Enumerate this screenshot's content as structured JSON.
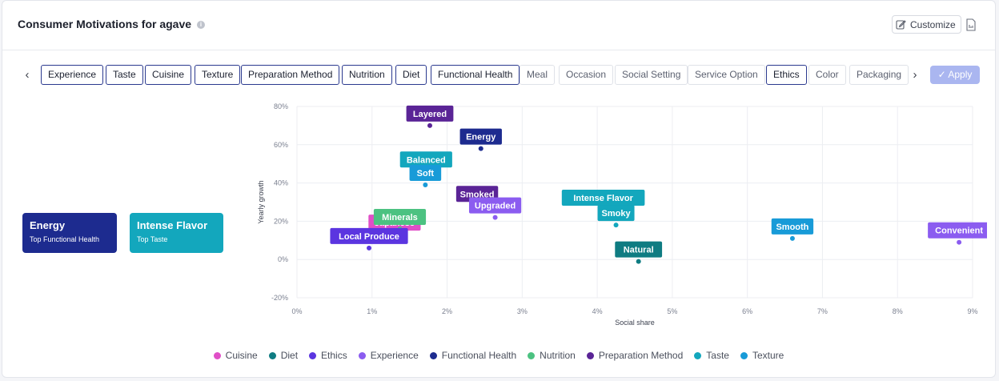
{
  "title": "Consumer Motivations for agave",
  "toolbar": {
    "customize_label": "Customize",
    "apply_label": "✓ Apply"
  },
  "filters": [
    {
      "label": "Experience",
      "selected": true
    },
    {
      "label": "Taste",
      "selected": true
    },
    {
      "label": "Cuisine",
      "selected": true
    },
    {
      "label": "Texture",
      "selected": true
    },
    {
      "label": "Preparation Method",
      "selected": true
    },
    {
      "label": "Nutrition",
      "selected": true
    },
    {
      "label": "Diet",
      "selected": true
    },
    {
      "label": "Functional Health",
      "selected": true
    },
    {
      "label": "Meal",
      "selected": false
    },
    {
      "label": "Occasion",
      "selected": false
    },
    {
      "label": "Social Setting",
      "selected": false
    },
    {
      "label": "Service Option",
      "selected": false
    },
    {
      "label": "Ethics",
      "selected": true
    },
    {
      "label": "Color",
      "selected": false
    },
    {
      "label": "Packaging",
      "selected": false
    }
  ],
  "summary_cards": [
    {
      "name": "Energy",
      "subtitle": "Top Functional Health",
      "color": "#1d2b8f"
    },
    {
      "name": "Intense Flavor",
      "subtitle": "Top Taste",
      "color": "#13a7bd"
    }
  ],
  "chart_data": {
    "type": "scatter",
    "xlabel": "Social share",
    "ylabel": "Yearly growth",
    "xlim": [
      0,
      9
    ],
    "ylim": [
      -20,
      80
    ],
    "xticks": [
      "0%",
      "1%",
      "2%",
      "3%",
      "4%",
      "5%",
      "6%",
      "7%",
      "8%",
      "9%"
    ],
    "yticks": [
      "-20%",
      "0%",
      "20%",
      "40%",
      "60%",
      "80%"
    ],
    "categories": [
      {
        "name": "Cuisine",
        "color": "#e04fc7"
      },
      {
        "name": "Diet",
        "color": "#0f7c82"
      },
      {
        "name": "Ethics",
        "color": "#5b35e0"
      },
      {
        "name": "Experience",
        "color": "#8b5cf0"
      },
      {
        "name": "Functional Health",
        "color": "#1d2b8f"
      },
      {
        "name": "Nutrition",
        "color": "#4cc281"
      },
      {
        "name": "Preparation Method",
        "color": "#5a2496"
      },
      {
        "name": "Taste",
        "color": "#13a7bd"
      },
      {
        "name": "Texture",
        "color": "#189bd8"
      }
    ],
    "points": [
      {
        "label": "Layered",
        "category": "Preparation Method",
        "x": 1.77,
        "y": 70
      },
      {
        "label": "Energy",
        "category": "Functional Health",
        "x": 2.45,
        "y": 58
      },
      {
        "label": "Balanced",
        "category": "Taste",
        "x": 1.72,
        "y": 46
      },
      {
        "label": "Soft",
        "category": "Texture",
        "x": 1.71,
        "y": 39
      },
      {
        "label": "Smoked",
        "category": "Preparation Method",
        "x": 2.4,
        "y": 28
      },
      {
        "label": "Upgraded",
        "category": "Experience",
        "x": 2.64,
        "y": 22
      },
      {
        "label": "Intense Flavor",
        "category": "Taste",
        "x": 4.08,
        "y": 26
      },
      {
        "label": "Smoky",
        "category": "Taste",
        "x": 4.25,
        "y": 18
      },
      {
        "label": "Japanese",
        "category": "Cuisine",
        "x": 1.3,
        "y": 13
      },
      {
        "label": "Minerals",
        "category": "Nutrition",
        "x": 1.37,
        "y": 16
      },
      {
        "label": "Local Produce",
        "category": "Ethics",
        "x": 0.96,
        "y": 6
      },
      {
        "label": "Natural",
        "category": "Diet",
        "x": 4.55,
        "y": -1
      },
      {
        "label": "Smooth",
        "category": "Texture",
        "x": 6.6,
        "y": 11
      },
      {
        "label": "Convenient",
        "category": "Experience",
        "x": 8.82,
        "y": 9
      }
    ]
  }
}
